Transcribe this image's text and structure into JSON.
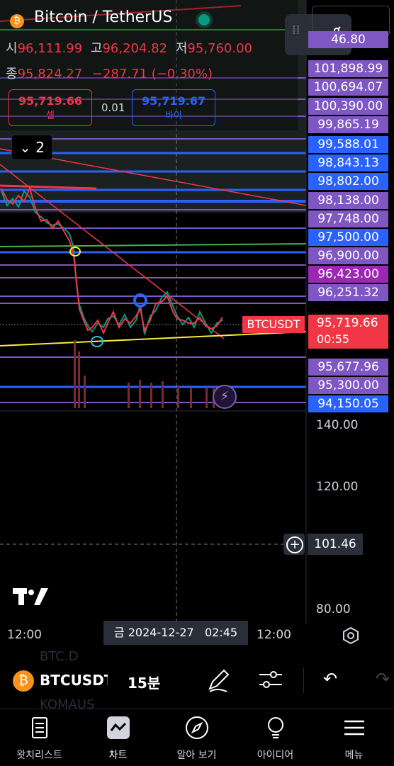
{
  "legend": {
    "symbol_name": "Bitcoin / TetherUS",
    "open_label": "시",
    "open": "96,111.99",
    "high_label": "고",
    "high": "96,204.82",
    "low_label": "저",
    "low": "95,760.00",
    "close_label": "종",
    "close": "95,824.27",
    "change": "−287.71 (−0.30%)",
    "sell_price": "95,719.66",
    "sell_label": "셀",
    "spread": "0.01",
    "buy_price": "95,719.67",
    "buy_label": "바이",
    "collapse_count": "2"
  },
  "price_labels": [
    {
      "text": "46.80",
      "color": "#7e57c2"
    },
    {
      "text": "101,898.99",
      "color": "#7e57c2"
    },
    {
      "text": "100,694.07",
      "color": "#7e57c2"
    },
    {
      "text": "100,390.00",
      "color": "#7e57c2"
    },
    {
      "text": "99,865.19",
      "color": "#7e57c2"
    },
    {
      "text": "99,588.01",
      "color": "#2962ff"
    },
    {
      "text": "98,843.13",
      "color": "#2962ff"
    },
    {
      "text": "98,802.00",
      "color": "#2962ff"
    },
    {
      "text": "98,138.00",
      "color": "#7e57c2"
    },
    {
      "text": "97,748.00",
      "color": "#7e57c2"
    },
    {
      "text": "97,500.00",
      "color": "#2962ff"
    },
    {
      "text": "96,900.00",
      "color": "#7e57c2"
    },
    {
      "text": "96,423.00",
      "color": "#9c27b0"
    },
    {
      "text": "96,251.32",
      "color": "#7e57c2"
    },
    {
      "text": "95,677.96",
      "color": "#7e57c2"
    },
    {
      "text": "95,300.00",
      "color": "#7e57c2"
    },
    {
      "text": "94,150.05",
      "color": "#2962ff"
    }
  ],
  "current_price": {
    "symbol": "BTCUSDT",
    "price": "95,719.66",
    "countdown": "00:55"
  },
  "volume_axis": [
    "140.00",
    "120.00",
    "80.00"
  ],
  "crosshair_value": "101.46",
  "time_axis": {
    "left": "12:00",
    "right": "12:00",
    "crosshair": "금 2024-12-27   02:45"
  },
  "toolbar": {
    "symbol": "BTCUSDT",
    "interval": "15분",
    "bg_text_1": "BTC.D",
    "bg_text_2": "KOMAUS"
  },
  "nav": [
    {
      "label": "왓치리스트",
      "icon": "watchlist-icon"
    },
    {
      "label": "차트",
      "icon": "chart-icon"
    },
    {
      "label": "알아 보기",
      "icon": "compass-icon"
    },
    {
      "label": "아이디어",
      "icon": "lightbulb-icon"
    },
    {
      "label": "메뉴",
      "icon": "menu-icon"
    }
  ],
  "colors": {
    "up": "#089981",
    "down": "#f23645",
    "accent": "#2962ff",
    "purple": "#7e57c2"
  }
}
